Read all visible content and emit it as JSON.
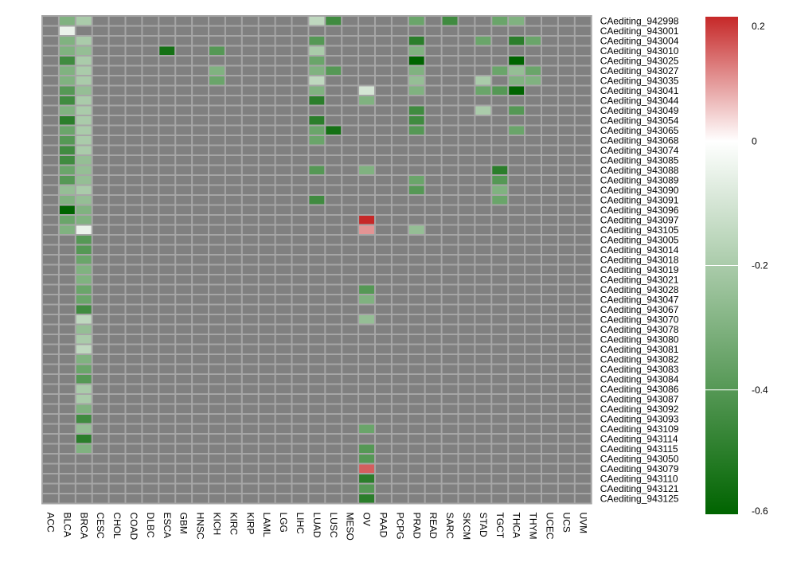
{
  "chart_data": {
    "type": "heatmap",
    "title": "",
    "columns": [
      "ACC",
      "BLCA",
      "BRCA",
      "CESC",
      "CHOL",
      "COAD",
      "DLBC",
      "ESCA",
      "GBM",
      "HNSC",
      "KICH",
      "KIRC",
      "KIRP",
      "LAML",
      "LGG",
      "LIHC",
      "LUAD",
      "LUSC",
      "MESO",
      "OV",
      "PAAD",
      "PCPG",
      "PRAD",
      "READ",
      "SARC",
      "SKCM",
      "STAD",
      "TGCT",
      "THCA",
      "THYM",
      "UCEC",
      "UCS",
      "UVM"
    ],
    "rows": [
      "CAediting_942998",
      "CAediting_943001",
      "CAediting_943004",
      "CAediting_943010",
      "CAediting_943025",
      "CAediting_943027",
      "CAediting_943035",
      "CAediting_943041",
      "CAediting_943044",
      "CAediting_943049",
      "CAediting_943054",
      "CAediting_943065",
      "CAediting_943068",
      "CAediting_943074",
      "CAediting_943085",
      "CAediting_943088",
      "CAediting_943089",
      "CAediting_943090",
      "CAediting_943091",
      "CAediting_943096",
      "CAediting_943097",
      "CAediting_943105",
      "CAediting_943005",
      "CAediting_943014",
      "CAediting_943018",
      "CAediting_943019",
      "CAediting_943021",
      "CAediting_943028",
      "CAediting_943047",
      "CAediting_943067",
      "CAediting_943070",
      "CAediting_943078",
      "CAediting_943080",
      "CAediting_943081",
      "CAediting_943082",
      "CAediting_943083",
      "CAediting_943084",
      "CAediting_943086",
      "CAediting_943087",
      "CAediting_943092",
      "CAediting_943093",
      "CAediting_943109",
      "CAediting_943114",
      "CAediting_943115",
      "CAediting_943050",
      "CAediting_943079",
      "CAediting_943110",
      "CAediting_943121",
      "CAediting_943125"
    ],
    "na_color": "#808080",
    "color_scale": {
      "min": -0.6,
      "max": 0.2,
      "low": "#006400",
      "mid": "#ffffff",
      "high": "#c62828"
    },
    "legend": {
      "ticks": [
        0.2,
        0,
        -0.2,
        -0.4,
        -0.6
      ],
      "tick_labels": [
        "0.2",
        "0",
        "-0.2",
        "-0.4",
        "-0.6"
      ]
    },
    "cells": [
      {
        "row": 0,
        "col": 1,
        "value": -0.3
      },
      {
        "row": 0,
        "col": 2,
        "value": -0.2
      },
      {
        "row": 0,
        "col": 16,
        "value": -0.15
      },
      {
        "row": 0,
        "col": 17,
        "value": -0.45
      },
      {
        "row": 0,
        "col": 22,
        "value": -0.35
      },
      {
        "row": 0,
        "col": 24,
        "value": -0.45
      },
      {
        "row": 0,
        "col": 27,
        "value": -0.35
      },
      {
        "row": 0,
        "col": 28,
        "value": -0.3
      },
      {
        "row": 1,
        "col": 1,
        "value": -0.05
      },
      {
        "row": 2,
        "col": 1,
        "value": -0.3
      },
      {
        "row": 2,
        "col": 2,
        "value": -0.2
      },
      {
        "row": 2,
        "col": 16,
        "value": -0.4
      },
      {
        "row": 2,
        "col": 22,
        "value": -0.5
      },
      {
        "row": 2,
        "col": 26,
        "value": -0.35
      },
      {
        "row": 2,
        "col": 28,
        "value": -0.5
      },
      {
        "row": 2,
        "col": 29,
        "value": -0.35
      },
      {
        "row": 3,
        "col": 1,
        "value": -0.3
      },
      {
        "row": 3,
        "col": 2,
        "value": -0.25
      },
      {
        "row": 3,
        "col": 7,
        "value": -0.55
      },
      {
        "row": 3,
        "col": 10,
        "value": -0.4
      },
      {
        "row": 3,
        "col": 16,
        "value": -0.2
      },
      {
        "row": 3,
        "col": 22,
        "value": -0.3
      },
      {
        "row": 4,
        "col": 1,
        "value": -0.45
      },
      {
        "row": 4,
        "col": 2,
        "value": -0.2
      },
      {
        "row": 4,
        "col": 16,
        "value": -0.35
      },
      {
        "row": 4,
        "col": 22,
        "value": -0.6
      },
      {
        "row": 4,
        "col": 28,
        "value": -0.6
      },
      {
        "row": 5,
        "col": 1,
        "value": -0.3
      },
      {
        "row": 5,
        "col": 2,
        "value": -0.2
      },
      {
        "row": 5,
        "col": 10,
        "value": -0.3
      },
      {
        "row": 5,
        "col": 16,
        "value": -0.3
      },
      {
        "row": 5,
        "col": 17,
        "value": -0.4
      },
      {
        "row": 5,
        "col": 22,
        "value": -0.3
      },
      {
        "row": 5,
        "col": 27,
        "value": -0.35
      },
      {
        "row": 5,
        "col": 28,
        "value": -0.25
      },
      {
        "row": 5,
        "col": 29,
        "value": -0.35
      },
      {
        "row": 6,
        "col": 1,
        "value": -0.3
      },
      {
        "row": 6,
        "col": 2,
        "value": -0.2
      },
      {
        "row": 6,
        "col": 10,
        "value": -0.35
      },
      {
        "row": 6,
        "col": 16,
        "value": -0.15
      },
      {
        "row": 6,
        "col": 22,
        "value": -0.25
      },
      {
        "row": 6,
        "col": 26,
        "value": -0.2
      },
      {
        "row": 6,
        "col": 28,
        "value": -0.3
      },
      {
        "row": 6,
        "col": 29,
        "value": -0.3
      },
      {
        "row": 7,
        "col": 1,
        "value": -0.4
      },
      {
        "row": 7,
        "col": 2,
        "value": -0.25
      },
      {
        "row": 7,
        "col": 16,
        "value": -0.3
      },
      {
        "row": 7,
        "col": 19,
        "value": -0.1
      },
      {
        "row": 7,
        "col": 22,
        "value": -0.3
      },
      {
        "row": 7,
        "col": 26,
        "value": -0.35
      },
      {
        "row": 7,
        "col": 27,
        "value": -0.4
      },
      {
        "row": 7,
        "col": 28,
        "value": -0.6
      },
      {
        "row": 8,
        "col": 1,
        "value": -0.45
      },
      {
        "row": 8,
        "col": 2,
        "value": -0.2
      },
      {
        "row": 8,
        "col": 16,
        "value": -0.5
      },
      {
        "row": 8,
        "col": 19,
        "value": -0.3
      },
      {
        "row": 9,
        "col": 1,
        "value": -0.3
      },
      {
        "row": 9,
        "col": 2,
        "value": -0.2
      },
      {
        "row": 9,
        "col": 22,
        "value": -0.45
      },
      {
        "row": 9,
        "col": 26,
        "value": -0.2
      },
      {
        "row": 9,
        "col": 28,
        "value": -0.4
      },
      {
        "row": 10,
        "col": 1,
        "value": -0.5
      },
      {
        "row": 10,
        "col": 2,
        "value": -0.2
      },
      {
        "row": 10,
        "col": 16,
        "value": -0.5
      },
      {
        "row": 10,
        "col": 22,
        "value": -0.45
      },
      {
        "row": 11,
        "col": 1,
        "value": -0.35
      },
      {
        "row": 11,
        "col": 2,
        "value": -0.2
      },
      {
        "row": 11,
        "col": 16,
        "value": -0.35
      },
      {
        "row": 11,
        "col": 17,
        "value": -0.55
      },
      {
        "row": 11,
        "col": 22,
        "value": -0.4
      },
      {
        "row": 11,
        "col": 28,
        "value": -0.35
      },
      {
        "row": 12,
        "col": 1,
        "value": -0.4
      },
      {
        "row": 12,
        "col": 2,
        "value": -0.2
      },
      {
        "row": 12,
        "col": 16,
        "value": -0.35
      },
      {
        "row": 13,
        "col": 1,
        "value": -0.45
      },
      {
        "row": 13,
        "col": 2,
        "value": -0.2
      },
      {
        "row": 14,
        "col": 1,
        "value": -0.45
      },
      {
        "row": 14,
        "col": 2,
        "value": -0.25
      },
      {
        "row": 15,
        "col": 1,
        "value": -0.35
      },
      {
        "row": 15,
        "col": 2,
        "value": -0.25
      },
      {
        "row": 15,
        "col": 16,
        "value": -0.4
      },
      {
        "row": 15,
        "col": 19,
        "value": -0.3
      },
      {
        "row": 15,
        "col": 27,
        "value": -0.5
      },
      {
        "row": 16,
        "col": 1,
        "value": -0.4
      },
      {
        "row": 16,
        "col": 2,
        "value": -0.25
      },
      {
        "row": 16,
        "col": 22,
        "value": -0.35
      },
      {
        "row": 16,
        "col": 27,
        "value": -0.4
      },
      {
        "row": 17,
        "col": 1,
        "value": -0.25
      },
      {
        "row": 17,
        "col": 2,
        "value": -0.2
      },
      {
        "row": 17,
        "col": 22,
        "value": -0.4
      },
      {
        "row": 17,
        "col": 27,
        "value": -0.3
      },
      {
        "row": 18,
        "col": 1,
        "value": -0.3
      },
      {
        "row": 18,
        "col": 2,
        "value": -0.25
      },
      {
        "row": 18,
        "col": 16,
        "value": -0.45
      },
      {
        "row": 18,
        "col": 27,
        "value": -0.35
      },
      {
        "row": 19,
        "col": 1,
        "value": -0.6
      },
      {
        "row": 19,
        "col": 2,
        "value": -0.3
      },
      {
        "row": 20,
        "col": 1,
        "value": -0.35
      },
      {
        "row": 20,
        "col": 2,
        "value": -0.3
      },
      {
        "row": 20,
        "col": 19,
        "value": 0.2
      },
      {
        "row": 21,
        "col": 1,
        "value": -0.3
      },
      {
        "row": 21,
        "col": 2,
        "value": -0.05
      },
      {
        "row": 21,
        "col": 19,
        "value": 0.1
      },
      {
        "row": 21,
        "col": 22,
        "value": -0.25
      },
      {
        "row": 22,
        "col": 2,
        "value": -0.4
      },
      {
        "row": 23,
        "col": 2,
        "value": -0.4
      },
      {
        "row": 24,
        "col": 2,
        "value": -0.35
      },
      {
        "row": 25,
        "col": 2,
        "value": -0.3
      },
      {
        "row": 26,
        "col": 2,
        "value": -0.3
      },
      {
        "row": 27,
        "col": 2,
        "value": -0.35
      },
      {
        "row": 27,
        "col": 19,
        "value": -0.4
      },
      {
        "row": 28,
        "col": 2,
        "value": -0.35
      },
      {
        "row": 28,
        "col": 19,
        "value": -0.3
      },
      {
        "row": 29,
        "col": 2,
        "value": -0.45
      },
      {
        "row": 30,
        "col": 2,
        "value": -0.15
      },
      {
        "row": 30,
        "col": 19,
        "value": -0.25
      },
      {
        "row": 31,
        "col": 2,
        "value": -0.25
      },
      {
        "row": 32,
        "col": 2,
        "value": -0.2
      },
      {
        "row": 33,
        "col": 2,
        "value": -0.15
      },
      {
        "row": 34,
        "col": 2,
        "value": -0.3
      },
      {
        "row": 35,
        "col": 2,
        "value": -0.35
      },
      {
        "row": 36,
        "col": 2,
        "value": -0.4
      },
      {
        "row": 37,
        "col": 2,
        "value": -0.2
      },
      {
        "row": 38,
        "col": 2,
        "value": -0.2
      },
      {
        "row": 39,
        "col": 2,
        "value": -0.3
      },
      {
        "row": 40,
        "col": 2,
        "value": -0.45
      },
      {
        "row": 41,
        "col": 2,
        "value": -0.25
      },
      {
        "row": 41,
        "col": 19,
        "value": -0.35
      },
      {
        "row": 42,
        "col": 2,
        "value": -0.5
      },
      {
        "row": 43,
        "col": 2,
        "value": -0.3
      },
      {
        "row": 43,
        "col": 19,
        "value": -0.4
      },
      {
        "row": 44,
        "col": 19,
        "value": -0.4
      },
      {
        "row": 45,
        "col": 19,
        "value": 0.15
      },
      {
        "row": 46,
        "col": 19,
        "value": -0.5
      },
      {
        "row": 47,
        "col": 19,
        "value": -0.4
      },
      {
        "row": 48,
        "col": 19,
        "value": -0.5
      }
    ]
  }
}
